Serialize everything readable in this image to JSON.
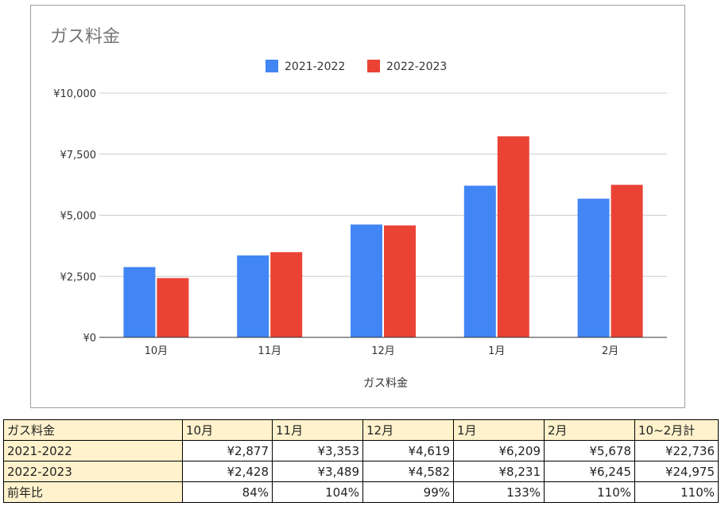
{
  "colors": {
    "series1": "#4285f4",
    "series2": "#ea4335",
    "grid": "#cccccc",
    "axis": "#333333",
    "table_header_bg": "#fff2cc"
  },
  "chart_data": {
    "type": "bar",
    "title": "ガス料金",
    "xlabel": "ガス料金",
    "ylabel": "",
    "categories": [
      "10月",
      "11月",
      "12月",
      "1月",
      "2月"
    ],
    "series": [
      {
        "name": "2021-2022",
        "values": [
          2877,
          3353,
          4619,
          6209,
          5678
        ]
      },
      {
        "name": "2022-2023",
        "values": [
          2428,
          3489,
          4582,
          8231,
          6245
        ]
      }
    ],
    "ylim": [
      0,
      10000
    ],
    "yticks": [
      0,
      2500,
      5000,
      7500,
      10000
    ],
    "ytick_labels": [
      "¥0",
      "¥2,500",
      "¥5,000",
      "¥7,500",
      "¥10,000"
    ],
    "grid": true,
    "legend": "top-center"
  },
  "table": {
    "header": [
      "ガス料金",
      "10月",
      "11月",
      "12月",
      "1月",
      "2月",
      "10~2月計"
    ],
    "rows": [
      [
        "2021-2022",
        "¥2,877",
        "¥3,353",
        "¥4,619",
        "¥6,209",
        "¥5,678",
        "¥22,736"
      ],
      [
        "2022-2023",
        "¥2,428",
        "¥3,489",
        "¥4,582",
        "¥8,231",
        "¥6,245",
        "¥24,975"
      ],
      [
        "前年比",
        "84%",
        "104%",
        "99%",
        "133%",
        "110%",
        "110%"
      ]
    ]
  }
}
